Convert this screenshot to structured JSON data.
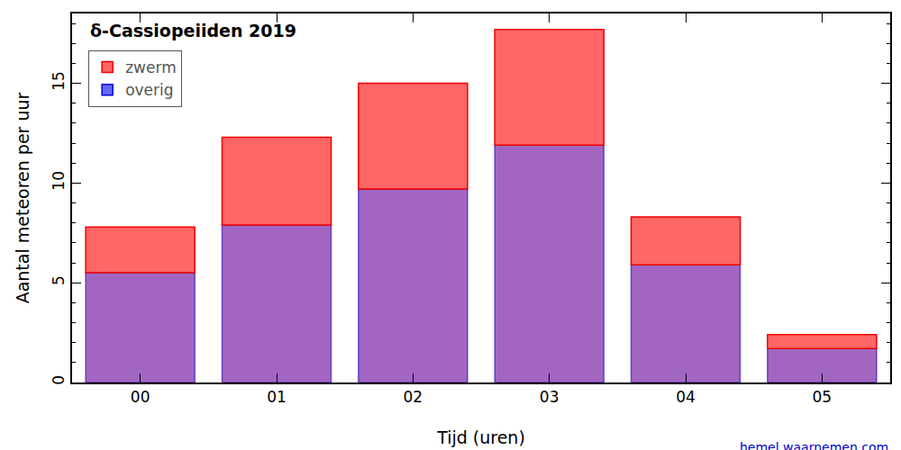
{
  "chart_data": {
    "type": "bar",
    "title": "δ-Cassiopeiiden 2019",
    "x_label": "Tijd (uren)",
    "y_label": "Aantal meteoren per uur",
    "annotations": [
      "hemel.waarnemen.com"
    ],
    "categories": [
      "00",
      "01",
      "02",
      "03",
      "04",
      "05"
    ],
    "series": [
      {
        "name": "overig",
        "color": "#6666ff",
        "values": [
          5.5,
          7.9,
          9.7,
          11.9,
          5.9,
          1.7
        ]
      },
      {
        "name": "zwerm",
        "color": "#ff6666",
        "values": [
          2.3,
          4.4,
          5.3,
          5.8,
          2.4,
          0.7
        ]
      }
    ],
    "stacked": true,
    "ylim": [
      0,
      18.5
    ],
    "yticks": [
      0,
      5,
      10,
      15
    ],
    "grid": false,
    "legend": "upper left"
  }
}
